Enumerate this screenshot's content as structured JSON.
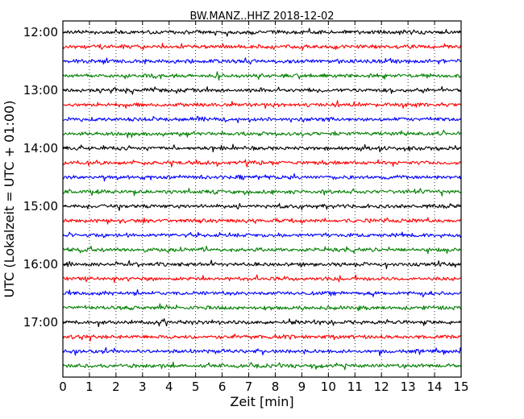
{
  "chart_data": {
    "type": "line",
    "title": "BW.MANZ..HHZ 2018-12-02",
    "xlabel": "Zeit  [min]",
    "ylabel": "UTC (Lokalzeit = UTC + 01:00)",
    "xlim": [
      0,
      15
    ],
    "x_ticks": [
      "0",
      "1",
      "2",
      "3",
      "4",
      "5",
      "6",
      "7",
      "8",
      "9",
      "10",
      "11",
      "12",
      "13",
      "14",
      "15"
    ],
    "y_ticks": [
      "12:00",
      "13:00",
      "14:00",
      "15:00",
      "16:00",
      "17:00"
    ],
    "grid": "vertical dotted at each minute",
    "trace_colors": [
      "#000000",
      "#ff0000",
      "#0000ff",
      "#007f00"
    ],
    "trace_interval_minutes": 15,
    "traces": [
      {
        "start": "12:00",
        "color": "#000000"
      },
      {
        "start": "12:15",
        "color": "#ff0000"
      },
      {
        "start": "12:30",
        "color": "#0000ff"
      },
      {
        "start": "12:45",
        "color": "#007f00"
      },
      {
        "start": "13:00",
        "color": "#000000"
      },
      {
        "start": "13:15",
        "color": "#ff0000"
      },
      {
        "start": "13:30",
        "color": "#0000ff"
      },
      {
        "start": "13:45",
        "color": "#007f00"
      },
      {
        "start": "14:00",
        "color": "#000000"
      },
      {
        "start": "14:15",
        "color": "#ff0000"
      },
      {
        "start": "14:30",
        "color": "#0000ff"
      },
      {
        "start": "14:45",
        "color": "#007f00"
      },
      {
        "start": "15:00",
        "color": "#000000"
      },
      {
        "start": "15:15",
        "color": "#ff0000"
      },
      {
        "start": "15:30",
        "color": "#0000ff"
      },
      {
        "start": "15:45",
        "color": "#007f00"
      },
      {
        "start": "16:00",
        "color": "#000000"
      },
      {
        "start": "16:15",
        "color": "#ff0000"
      },
      {
        "start": "16:30",
        "color": "#0000ff"
      },
      {
        "start": "16:45",
        "color": "#007f00"
      },
      {
        "start": "17:00",
        "color": "#000000"
      },
      {
        "start": "17:15",
        "color": "#ff0000"
      },
      {
        "start": "17:30",
        "color": "#0000ff"
      },
      {
        "start": "17:45",
        "color": "#007f00"
      }
    ]
  }
}
